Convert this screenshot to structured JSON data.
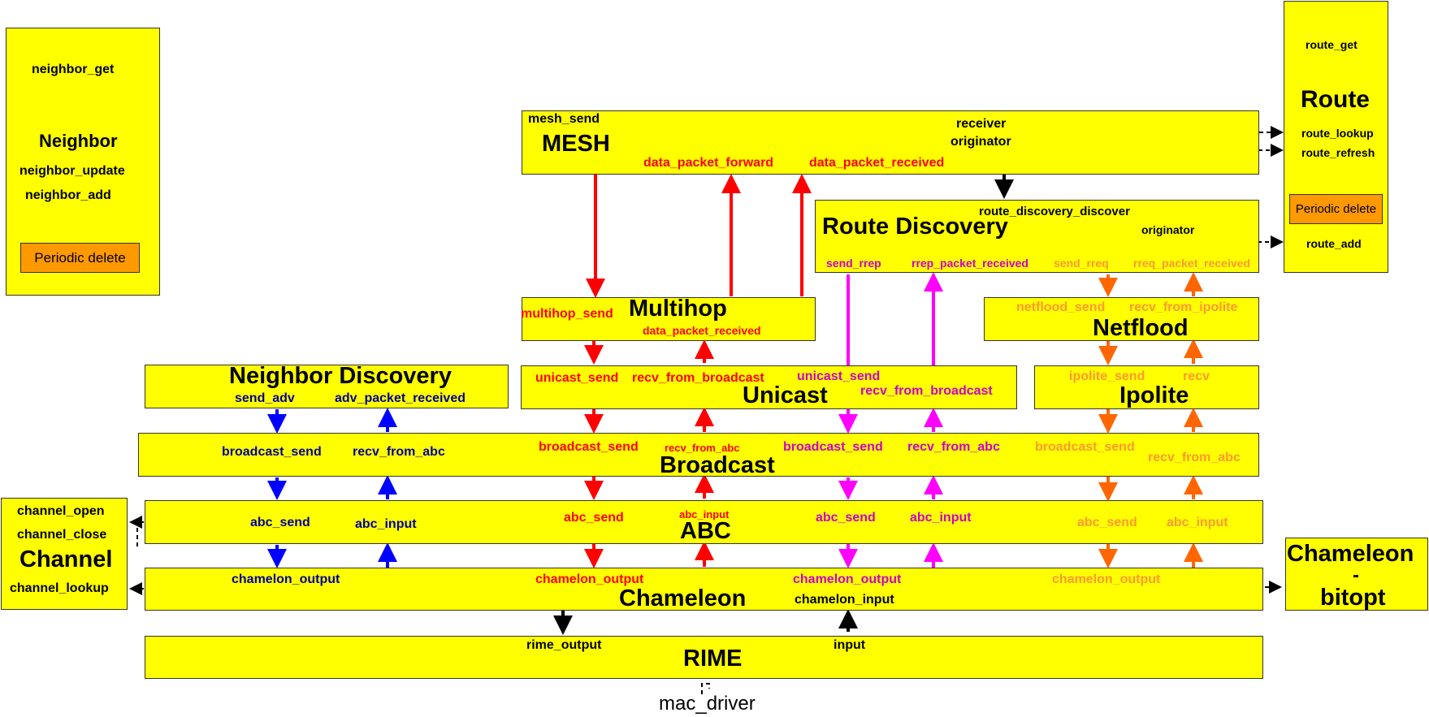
{
  "colors": {
    "box": "#ffff00",
    "red": "#ff0000",
    "blue": "#0000ff",
    "magenta": "#ff00ff",
    "orange": "#ff6600",
    "black": "#000000"
  },
  "neighbor": {
    "title": "Neighbor",
    "get": "neighbor_get",
    "update": "neighbor_update",
    "add": "neighbor_add",
    "periodic": "Periodic delete"
  },
  "route": {
    "title": "Route",
    "get": "route_get",
    "lookup": "route_lookup",
    "refresh": "route_refresh",
    "periodic": "Periodic delete",
    "add": "route_add"
  },
  "mesh": {
    "title": "MESH",
    "send": "mesh_send",
    "receiver": "receiver",
    "originator": "originator",
    "forward": "data_packet_forward",
    "received": "data_packet_received"
  },
  "route_discovery": {
    "title": "Route Discovery",
    "discover": "route_discovery_discover",
    "originator": "originator",
    "send_rrep": "send_rrep",
    "rrep_received": "rrep_packet_received",
    "send_rreq": "send_rreq",
    "rreq_received": "rreq_packet_received"
  },
  "multihop": {
    "title": "Multihop",
    "send": "multihop_send",
    "received": "data_packet_received"
  },
  "netflood": {
    "title": "Netflood",
    "send": "netflood_send",
    "recv": "recv_from_ipolite"
  },
  "neighbor_discovery": {
    "title": "Neighbor Discovery",
    "send": "send_adv",
    "received": "adv_packet_received"
  },
  "unicast": {
    "title": "Unicast",
    "send_red": "unicast_send",
    "recv_red": "recv_from_broadcast",
    "send_mag": "unicast_send",
    "recv_mag": "recv_from_broadcast"
  },
  "ipolite": {
    "title": "Ipolite",
    "send": "ipolite_send",
    "recv": "recv"
  },
  "broadcast": {
    "title": "Broadcast",
    "send_blue": "broadcast_send",
    "recv_blue": "recv_from_abc",
    "send_red": "broadcast_send",
    "recv_red": "recv_from_abc",
    "send_mag": "broadcast_send",
    "recv_mag": "recv_from_abc",
    "send_org": "broadcast_send",
    "recv_org": "recv_from_abc"
  },
  "channel": {
    "title": "Channel",
    "open": "channel_open",
    "close": "channel_close",
    "lookup": "channel_lookup"
  },
  "abc": {
    "title": "ABC",
    "send_blue": "abc_send",
    "input_blue": "abc_input",
    "send_red": "abc_send",
    "input_red": "abc_input",
    "send_mag": "abc_send",
    "input_mag": "abc_input",
    "send_org": "abc_send",
    "input_org": "abc_input"
  },
  "chameleon": {
    "title": "Chameleon",
    "out_blue": "chamelon_output",
    "out_red": "chamelon_output",
    "out_mag": "chamelon_output",
    "out_org": "chamelon_output",
    "input": "chamelon_input"
  },
  "chameleon_bitopt": {
    "line1": "Chameleon",
    "line2": "-",
    "line3": "bitopt"
  },
  "rime": {
    "title": "RIME",
    "output": "rime_output",
    "input": "input",
    "mac": "mac_driver"
  }
}
